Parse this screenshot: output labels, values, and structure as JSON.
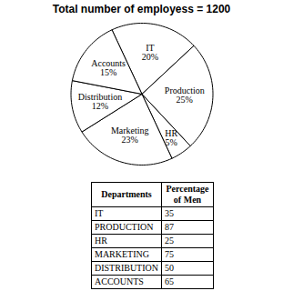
{
  "chart_data": {
    "type": "pie",
    "title": "Total number of employess = 1200",
    "categories": [
      "IT",
      "Production",
      "HR",
      "Marketing",
      "Distribution",
      "Accounts"
    ],
    "values": [
      20,
      25,
      5,
      23,
      12,
      15
    ],
    "value_labels": [
      "20%",
      "25%",
      "5%",
      "23%",
      "12%",
      "15%"
    ],
    "data_labels": true,
    "color": "#ffffff"
  },
  "table": {
    "header": [
      "Departments",
      "Percentage of Men"
    ],
    "rows": [
      [
        "IT",
        35
      ],
      [
        "PRODUCTION",
        87
      ],
      [
        "HR",
        25
      ],
      [
        "MARKETING",
        75
      ],
      [
        "DISTRIBUTION",
        50
      ],
      [
        "ACCOUNTS",
        65
      ]
    ]
  }
}
